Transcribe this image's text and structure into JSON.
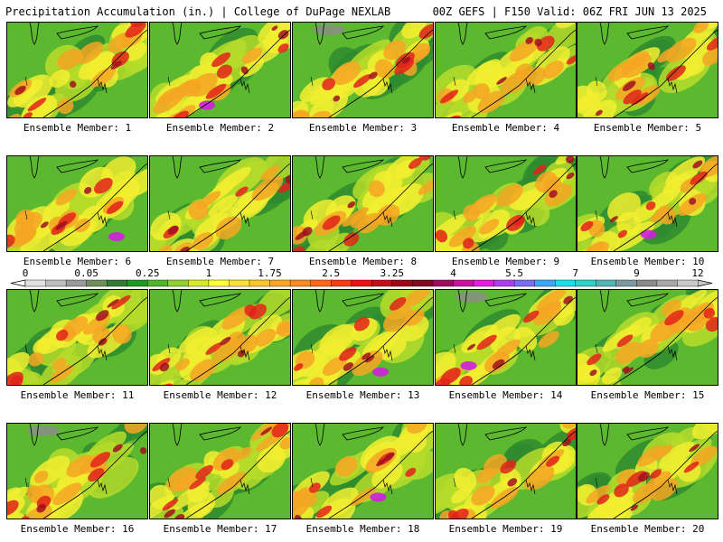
{
  "header": {
    "left": "Precipitation Accumulation (in.) | College of DuPage NEXLAB",
    "right": "00Z GEFS | F150 Valid: 06Z FRI JUN 13 2025"
  },
  "members": [
    {
      "label": "Ensemble Member: 1"
    },
    {
      "label": "Ensemble Member: 2"
    },
    {
      "label": "Ensemble Member: 3"
    },
    {
      "label": "Ensemble Member: 4"
    },
    {
      "label": "Ensemble Member: 5"
    },
    {
      "label": "Ensemble Member: 6"
    },
    {
      "label": "Ensemble Member: 7"
    },
    {
      "label": "Ensemble Member: 8"
    },
    {
      "label": "Ensemble Member: 9"
    },
    {
      "label": "Ensemble Member: 10"
    },
    {
      "label": "Ensemble Member: 11"
    },
    {
      "label": "Ensemble Member: 12"
    },
    {
      "label": "Ensemble Member: 13"
    },
    {
      "label": "Ensemble Member: 14"
    },
    {
      "label": "Ensemble Member: 15"
    },
    {
      "label": "Ensemble Member: 16"
    },
    {
      "label": "Ensemble Member: 17"
    },
    {
      "label": "Ensemble Member: 18"
    },
    {
      "label": "Ensemble Member: 19"
    },
    {
      "label": "Ensemble Member: 20"
    }
  ],
  "colorbar": {
    "tick_labels": [
      "0",
      "0.05",
      "0.25",
      "1",
      "1.75",
      "2.5",
      "3.25",
      "4",
      "5.5",
      "7",
      "9",
      "12"
    ],
    "colors": [
      "#e0e0e0",
      "#bdbdbd",
      "#9a9a9a",
      "#6e8f5e",
      "#2f7d32",
      "#1e9a1e",
      "#4fb82a",
      "#8fd12e",
      "#d6ea2a",
      "#ffff33",
      "#ffe033",
      "#ffc42e",
      "#ffa526",
      "#ff8a1f",
      "#ff6a18",
      "#ff3a12",
      "#f01010",
      "#c80c18",
      "#a00818",
      "#800a20",
      "#a00a60",
      "#c814a0",
      "#e21ee2",
      "#b03cf0",
      "#7a6cf5",
      "#3ca8f5",
      "#16e0f0",
      "#30d0c8",
      "#50b4b4",
      "#7a9aa0",
      "#8a8a8a",
      "#a8a8a8",
      "#c8c8c8"
    ]
  },
  "palette": {
    "green_dark": "#2e8b2e",
    "green": "#5cb82e",
    "yellow_green": "#b6dc2a",
    "yellow": "#f2ee30",
    "orange": "#f5a623",
    "red": "#e2231a",
    "dark_red": "#a0101e",
    "magenta": "#d21ee0",
    "gray": "#8c8c8c"
  }
}
